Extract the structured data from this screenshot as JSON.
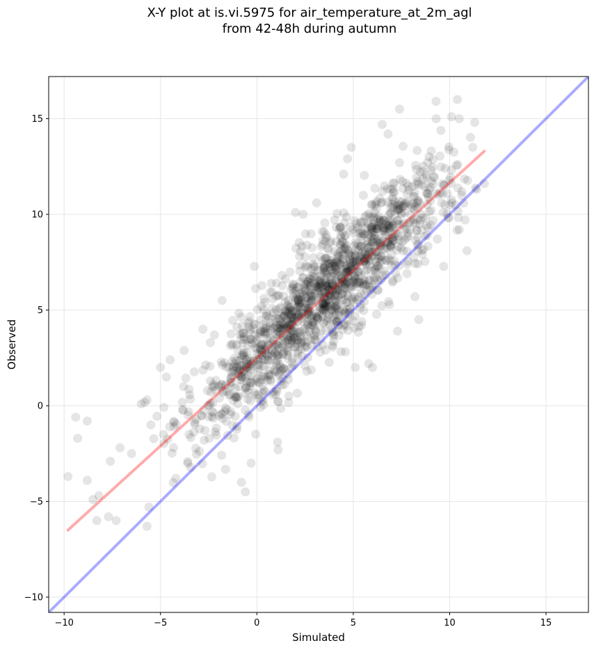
{
  "chart_data": {
    "type": "scatter",
    "title": "X-Y plot at is.vi.5975 for air_temperature_at_2m_agl",
    "subtitle": "from 42-48h during autumn",
    "xlabel": "Simulated",
    "ylabel": "Observed",
    "xlim": [
      -10.8,
      17.2
    ],
    "ylim": [
      -10.8,
      17.2
    ],
    "xticks": [
      "−10",
      "−5",
      "0",
      "5",
      "10",
      "15"
    ],
    "yticks": [
      "−10",
      "−5",
      "0",
      "5",
      "10",
      "15"
    ],
    "xtick_values": [
      -10,
      -5,
      0,
      5,
      10,
      15
    ],
    "ytick_values": [
      -10,
      -5,
      0,
      5,
      10,
      15
    ],
    "grid": true,
    "point_color": "#000000",
    "point_alpha": 0.1,
    "cluster": {
      "slope": 0.93,
      "intercept": 2.55,
      "x_range": [
        -9.7,
        11.8
      ],
      "spread": 1.45,
      "n_points": 1500
    },
    "lines": [
      {
        "label": "1:1",
        "color": "#0000ff",
        "x": [
          -10.8,
          17.2
        ],
        "y": [
          -10.8,
          17.2
        ]
      },
      {
        "label": "fit",
        "color": "#ff0000",
        "x": [
          -9.8,
          11.8
        ],
        "y": [
          -6.5,
          13.3
        ]
      }
    ],
    "points_sample": [
      {
        "x": -9.4,
        "y": -0.6
      },
      {
        "x": -9.3,
        "y": -1.7
      },
      {
        "x": -8.8,
        "y": -0.8
      },
      {
        "x": -9.8,
        "y": -3.7
      },
      {
        "x": -8.8,
        "y": -3.9
      },
      {
        "x": -8.5,
        "y": -4.9
      },
      {
        "x": -8.2,
        "y": -4.7
      },
      {
        "x": -8.3,
        "y": -6.0
      },
      {
        "x": -7.7,
        "y": -5.8
      },
      {
        "x": -7.3,
        "y": -6.0
      },
      {
        "x": -7.6,
        "y": -2.9
      },
      {
        "x": -7.1,
        "y": -2.2
      },
      {
        "x": -6.5,
        "y": -2.5
      },
      {
        "x": -6.0,
        "y": 0.1
      },
      {
        "x": -5.7,
        "y": 0.3
      },
      {
        "x": -5.5,
        "y": -1.0
      },
      {
        "x": -5.7,
        "y": -6.3
      },
      {
        "x": -5.6,
        "y": -5.3
      },
      {
        "x": -5.0,
        "y": 2.0
      },
      {
        "x": -4.5,
        "y": 2.4
      },
      {
        "x": -4.7,
        "y": 1.5
      },
      {
        "x": -4.3,
        "y": -1.1
      },
      {
        "x": -3.8,
        "y": 1.0
      },
      {
        "x": -2.8,
        "y": 4.0
      },
      {
        "x": -2.2,
        "y": 3.7
      },
      {
        "x": -1.8,
        "y": 5.5
      },
      {
        "x": -0.8,
        "y": -4.0
      },
      {
        "x": -0.6,
        "y": -4.5
      },
      {
        "x": -0.3,
        "y": -3.0
      },
      {
        "x": 1.1,
        "y": -2.3
      },
      {
        "x": 2.0,
        "y": 10.1
      },
      {
        "x": 2.4,
        "y": 10.0
      },
      {
        "x": 3.1,
        "y": 10.6
      },
      {
        "x": 4.5,
        "y": 12.1
      },
      {
        "x": 4.7,
        "y": 12.9
      },
      {
        "x": 4.9,
        "y": 13.5
      },
      {
        "x": 5.1,
        "y": 2.0
      },
      {
        "x": 5.8,
        "y": 2.2
      },
      {
        "x": 6.0,
        "y": 2.0
      },
      {
        "x": 6.5,
        "y": 14.7
      },
      {
        "x": 6.8,
        "y": 14.2
      },
      {
        "x": 7.4,
        "y": 15.5
      },
      {
        "x": 7.3,
        "y": 3.9
      },
      {
        "x": 8.4,
        "y": 4.5
      },
      {
        "x": 8.2,
        "y": 5.7
      },
      {
        "x": 9.3,
        "y": 15.0
      },
      {
        "x": 10.1,
        "y": 15.1
      },
      {
        "x": 10.4,
        "y": 16.0
      },
      {
        "x": 10.5,
        "y": 15.0
      },
      {
        "x": 10.5,
        "y": 9.2
      },
      {
        "x": 10.9,
        "y": 8.1
      },
      {
        "x": 11.3,
        "y": 14.8
      },
      {
        "x": 11.4,
        "y": 11.3
      }
    ]
  }
}
